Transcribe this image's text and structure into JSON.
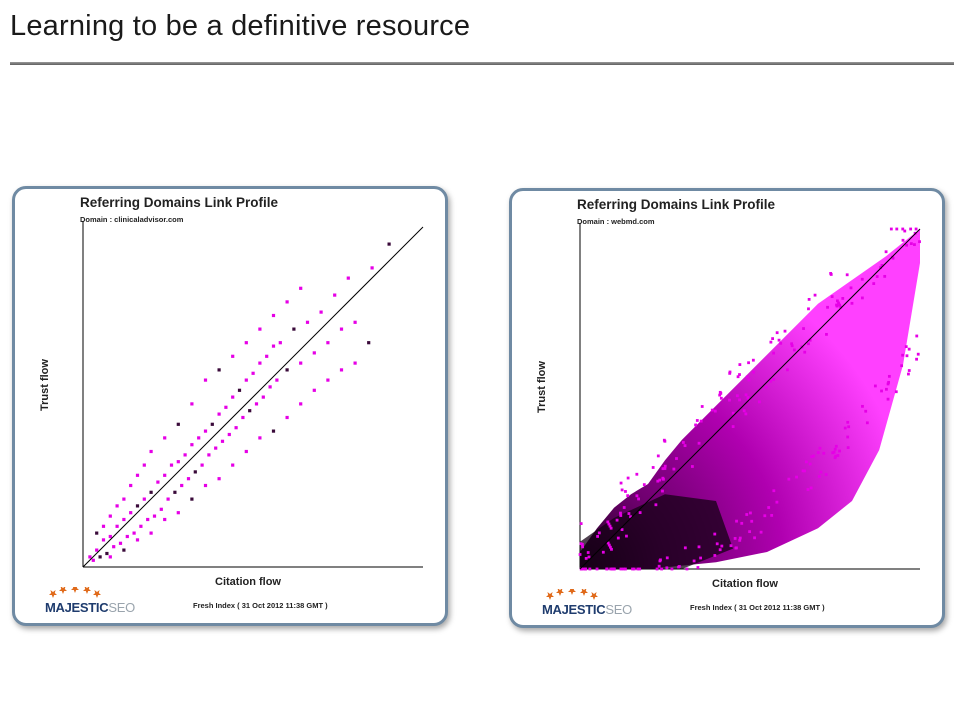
{
  "page": {
    "title": "Learning to be a definitive resource"
  },
  "panels": [
    {
      "title": "Referring Domains Link Profile",
      "domain_label": "Domain : clinicaladvisor.com",
      "brand_main": "MAJESTIC",
      "brand_suffix": "SEO",
      "footer": "Fresh Index ( 31 Oct 2012 11:38 GMT )"
    },
    {
      "title": "Referring Domains Link Profile",
      "domain_label": "Domain : webmd.com",
      "brand_main": "MAJESTIC",
      "brand_suffix": "SEO",
      "footer": "Fresh Index ( 31 Oct 2012 11:38 GMT )"
    }
  ],
  "colors": {
    "point": "#e600e6",
    "point_dark": "#3a0a3a",
    "frame": "#6f8aa3",
    "diagonal": "#000000"
  },
  "chart_data": [
    {
      "type": "heatmap",
      "subtype": "scatter density",
      "title": "Referring Domains Link Profile",
      "subtitle": "Domain : clinicaladvisor.com",
      "xlabel": "Citation flow",
      "ylabel": "Trust flow",
      "xlim": [
        0,
        100
      ],
      "ylim": [
        0,
        100
      ],
      "reference_line": "y = x",
      "grid": false,
      "note": "sparse points clustered along and below the diagonal, densest at low citation flow",
      "points": [
        [
          2,
          3
        ],
        [
          3,
          2
        ],
        [
          4,
          5
        ],
        [
          5,
          3
        ],
        [
          6,
          8
        ],
        [
          7,
          4
        ],
        [
          8,
          9
        ],
        [
          9,
          6
        ],
        [
          10,
          12
        ],
        [
          11,
          7
        ],
        [
          12,
          14
        ],
        [
          13,
          9
        ],
        [
          14,
          16
        ],
        [
          15,
          10
        ],
        [
          16,
          18
        ],
        [
          17,
          12
        ],
        [
          18,
          20
        ],
        [
          19,
          14
        ],
        [
          20,
          22
        ],
        [
          21,
          15
        ],
        [
          22,
          25
        ],
        [
          23,
          17
        ],
        [
          24,
          27
        ],
        [
          25,
          20
        ],
        [
          26,
          30
        ],
        [
          27,
          22
        ],
        [
          28,
          31
        ],
        [
          29,
          24
        ],
        [
          30,
          33
        ],
        [
          31,
          26
        ],
        [
          32,
          36
        ],
        [
          33,
          28
        ],
        [
          34,
          38
        ],
        [
          35,
          30
        ],
        [
          36,
          40
        ],
        [
          37,
          33
        ],
        [
          38,
          42
        ],
        [
          39,
          35
        ],
        [
          40,
          45
        ],
        [
          41,
          37
        ],
        [
          42,
          47
        ],
        [
          43,
          39
        ],
        [
          44,
          50
        ],
        [
          45,
          41
        ],
        [
          46,
          52
        ],
        [
          47,
          44
        ],
        [
          48,
          55
        ],
        [
          49,
          46
        ],
        [
          50,
          57
        ],
        [
          51,
          48
        ],
        [
          52,
          60
        ],
        [
          53,
          50
        ],
        [
          54,
          62
        ],
        [
          55,
          53
        ],
        [
          56,
          65
        ],
        [
          57,
          55
        ],
        [
          58,
          66
        ],
        [
          60,
          58
        ],
        [
          62,
          70
        ],
        [
          64,
          60
        ],
        [
          66,
          72
        ],
        [
          68,
          63
        ],
        [
          70,
          75
        ],
        [
          72,
          66
        ],
        [
          74,
          80
        ],
        [
          76,
          70
        ],
        [
          78,
          85
        ],
        [
          80,
          72
        ],
        [
          85,
          88
        ],
        [
          90,
          95
        ],
        [
          4,
          10
        ],
        [
          6,
          12
        ],
        [
          8,
          15
        ],
        [
          10,
          18
        ],
        [
          12,
          20
        ],
        [
          14,
          24
        ],
        [
          16,
          27
        ],
        [
          18,
          30
        ],
        [
          20,
          34
        ],
        [
          24,
          38
        ],
        [
          28,
          42
        ],
        [
          32,
          48
        ],
        [
          36,
          55
        ],
        [
          40,
          58
        ],
        [
          44,
          62
        ],
        [
          48,
          66
        ],
        [
          52,
          70
        ],
        [
          56,
          74
        ],
        [
          60,
          78
        ],
        [
          64,
          82
        ],
        [
          8,
          3
        ],
        [
          12,
          5
        ],
        [
          16,
          8
        ],
        [
          20,
          10
        ],
        [
          24,
          14
        ],
        [
          28,
          16
        ],
        [
          32,
          20
        ],
        [
          36,
          24
        ],
        [
          40,
          26
        ],
        [
          44,
          30
        ],
        [
          48,
          34
        ],
        [
          52,
          38
        ],
        [
          56,
          40
        ],
        [
          60,
          44
        ],
        [
          64,
          48
        ],
        [
          68,
          52
        ],
        [
          72,
          55
        ],
        [
          76,
          58
        ],
        [
          80,
          60
        ],
        [
          84,
          66
        ]
      ]
    },
    {
      "type": "heatmap",
      "subtype": "scatter density",
      "title": "Referring Domains Link Profile",
      "subtitle": "Domain : webmd.com",
      "xlabel": "Citation flow",
      "ylabel": "Trust flow",
      "xlim": [
        0,
        100
      ],
      "ylim": [
        0,
        100
      ],
      "reference_line": "y = x",
      "grid": false,
      "note": "dense cloud filling region around and below the diagonal, darkest (highest density) at low citation and trust flow",
      "density_band": {
        "lower_edge": [
          [
            0,
            0
          ],
          [
            20,
            0
          ],
          [
            40,
            2
          ],
          [
            55,
            5
          ],
          [
            70,
            12
          ],
          [
            80,
            20
          ],
          [
            88,
            35
          ],
          [
            95,
            60
          ],
          [
            100,
            90
          ]
        ],
        "upper_edge": [
          [
            0,
            5
          ],
          [
            5,
            12
          ],
          [
            10,
            18
          ],
          [
            15,
            22
          ],
          [
            20,
            25
          ],
          [
            25,
            32
          ],
          [
            30,
            38
          ],
          [
            40,
            48
          ],
          [
            50,
            58
          ],
          [
            60,
            68
          ],
          [
            70,
            78
          ],
          [
            80,
            85
          ],
          [
            90,
            92
          ],
          [
            100,
            100
          ]
        ],
        "dense_core": [
          [
            0,
            0
          ],
          [
            30,
            0
          ],
          [
            45,
            6
          ],
          [
            40,
            20
          ],
          [
            25,
            22
          ],
          [
            10,
            15
          ],
          [
            0,
            8
          ]
        ]
      }
    }
  ]
}
